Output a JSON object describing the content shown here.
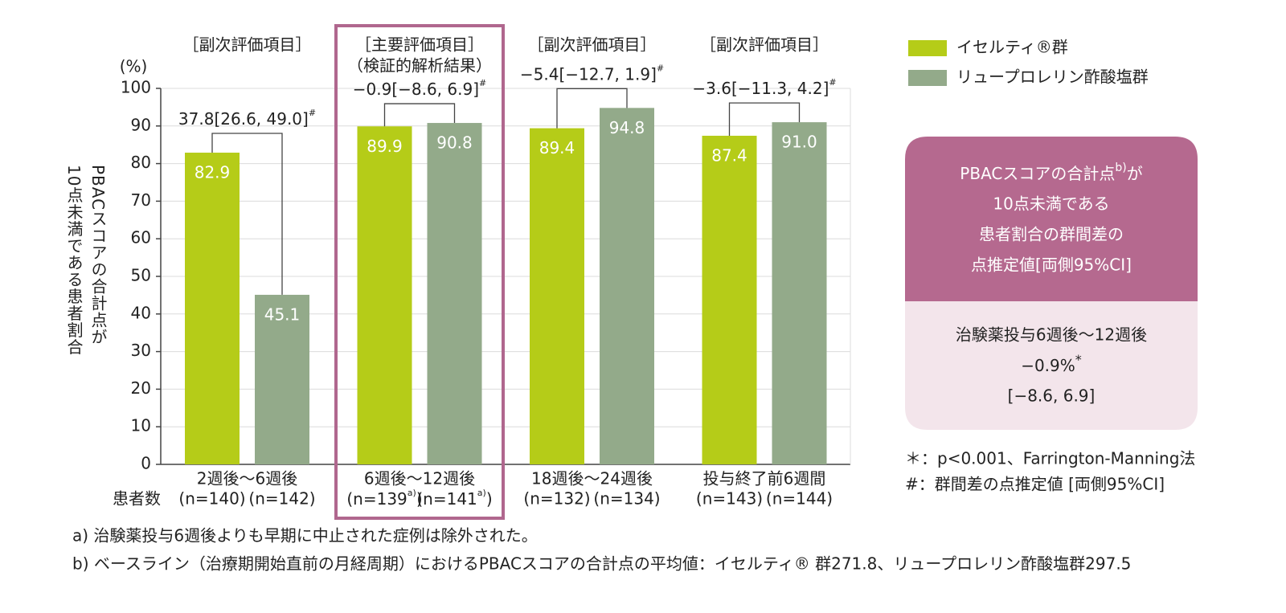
{
  "chart_data": {
    "type": "bar",
    "y_unit": "(%)",
    "y_label": [
      "PBACスコアの合計点が",
      "10点未満である患者割合"
    ],
    "ylim": [
      0,
      100
    ],
    "yticks": [
      0,
      10,
      20,
      30,
      40,
      50,
      60,
      70,
      80,
      90,
      100
    ],
    "grid": true,
    "legend": "top-right",
    "categories": [
      "2週後〜6週後",
      "6週後〜12週後",
      "18週後〜24週後",
      "投与終了前6週間"
    ],
    "group_labels": [
      [
        "［副次評価項目］"
      ],
      [
        "［主要評価項目］",
        "（検証的解析結果）"
      ],
      [
        "［副次評価項目］"
      ],
      [
        "［副次評価項目］"
      ]
    ],
    "highlight_category": 1,
    "highlight_color": "#b0678e",
    "series": [
      {
        "name": "イセルティ®群",
        "color": "#b5cc18",
        "values": [
          82.9,
          89.9,
          89.4,
          87.4
        ],
        "value_labels": [
          "82.9",
          "89.9",
          "89.4",
          "87.4"
        ]
      },
      {
        "name": "リュープロレリン酢酸塩群",
        "color": "#93aa8a",
        "values": [
          45.1,
          90.8,
          94.8,
          91.0
        ],
        "value_labels": [
          "45.1",
          "90.8",
          "94.8",
          "91.0"
        ]
      }
    ],
    "differences": [
      {
        "text": "37.8[26.6, 49.0]",
        "note": "#"
      },
      {
        "text": "−0.9[−8.6, 6.9]",
        "note": "#"
      },
      {
        "text": "−5.4[−12.7, 1.9]",
        "note": "#"
      },
      {
        "text": "−3.6[−11.3, 4.2]",
        "note": "#"
      }
    ],
    "n_label": "患者数",
    "n": [
      [
        "(n=140)",
        "(n=142)"
      ],
      [
        {
          "text": "(n=139",
          "note": "a)",
          "post": ")"
        },
        {
          "text": "(n=141",
          "note": "a)",
          "post": ")"
        }
      ],
      [
        "(n=132)",
        "(n=134)"
      ],
      [
        "(n=143)",
        "(n=144)"
      ]
    ]
  },
  "summary_box": {
    "heading": [
      {
        "text": "PBACスコアの合計点",
        "note": "b)",
        "post": "が"
      },
      "10点未満である",
      "患者割合の群間差の",
      "点推定値[両側95%CI]"
    ],
    "period": "治験薬投与6週後〜12週後",
    "estimate": {
      "text": "−0.9%",
      "note": "*"
    },
    "ci": "[−8.6, 6.9]"
  },
  "notes": [
    "＊：p<0.001、Farrington-Manning法",
    "#：群間差の点推定値 [両側95%CI]"
  ],
  "footnotes": [
    "a) 治験薬投与6週後よりも早期に中止された症例は除外された。",
    "b) ベースライン（治療期開始直前の月経周期）におけるPBACスコアの合計点の平均値：イセルティ® 群271.8、リュープロレリン酢酸塩群297.5"
  ]
}
